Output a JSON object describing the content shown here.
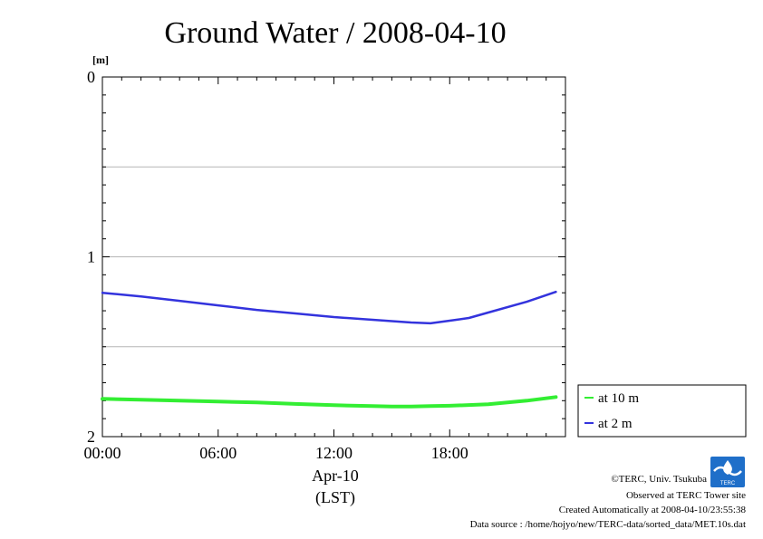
{
  "chart_data": {
    "type": "line",
    "title": "Ground Water / 2008-04-10",
    "ylabel": "[m]",
    "xlabel_date": "Apr-10",
    "xlabel_tz": "(LST)",
    "ylim": [
      0,
      2
    ],
    "y_inverted": true,
    "y_ticks": [
      0,
      1,
      2
    ],
    "y_tick_labels": [
      "0",
      "1",
      "2"
    ],
    "y_gridlines": [
      0.5,
      1,
      1.5
    ],
    "xlim": [
      0,
      24
    ],
    "x_ticks": [
      0,
      6,
      12,
      18
    ],
    "x_tick_labels": [
      "00:00",
      "06:00",
      "12:00",
      "18:00"
    ],
    "grid": true,
    "legend_position": "right",
    "series": [
      {
        "name": "at 10 m",
        "color": "#33ee33",
        "x": [
          0,
          2,
          4,
          6,
          8,
          10,
          12,
          14,
          15,
          16,
          17,
          18,
          20,
          22,
          23.5
        ],
        "y": [
          1.79,
          1.795,
          1.8,
          1.805,
          1.81,
          1.818,
          1.825,
          1.83,
          1.832,
          1.832,
          1.83,
          1.828,
          1.82,
          1.8,
          1.78
        ]
      },
      {
        "name": "at 2 m",
        "color": "#3333dd",
        "x": [
          0,
          2,
          4,
          6,
          8,
          10,
          12,
          14,
          16,
          17,
          18,
          19,
          20,
          22,
          23.5
        ],
        "y": [
          1.2,
          1.22,
          1.245,
          1.27,
          1.295,
          1.315,
          1.335,
          1.35,
          1.365,
          1.37,
          1.355,
          1.34,
          1.31,
          1.25,
          1.195
        ]
      }
    ]
  },
  "footer": {
    "logo_text": "TERC",
    "copyright": "©TERC, Univ. Tsukuba",
    "observed": "Observed at TERC Tower site",
    "created": "Created Automatically at 2008-04-10/23:55:38",
    "source": "Data source : /home/hojyo/new/TERC-data/sorted_data/MET.10s.dat"
  }
}
